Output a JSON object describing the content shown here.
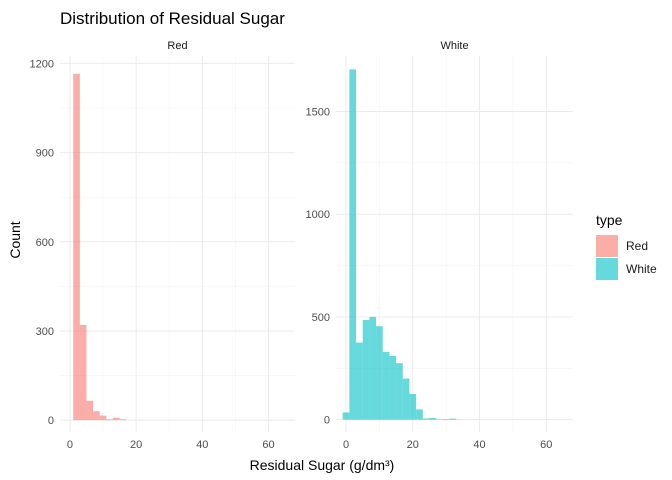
{
  "chart_data": {
    "type": "bar",
    "title": "Distribution of Residual Sugar",
    "xlabel": "Residual Sugar (g/dm³)",
    "ylabel": "Count",
    "legend": {
      "title": "type",
      "position": "right",
      "items": [
        {
          "label": "Red",
          "color": "#F8766D"
        },
        {
          "label": "White",
          "color": "#00BFC4"
        }
      ]
    },
    "bin_width": 2,
    "grid": true,
    "panels": [
      {
        "name": "Red",
        "color": "#F8766D",
        "xlim": [
          -3,
          68
        ],
        "ylim": [
          -40,
          1225
        ],
        "x_ticks": [
          0,
          20,
          40,
          60
        ],
        "y_ticks": [
          0,
          300,
          600,
          900,
          1200
        ],
        "bins": [
          {
            "x": 1,
            "count": 0
          },
          {
            "x": 2,
            "count": 1165
          },
          {
            "x": 4,
            "count": 320
          },
          {
            "x": 6,
            "count": 65
          },
          {
            "x": 8,
            "count": 30
          },
          {
            "x": 10,
            "count": 15
          },
          {
            "x": 12,
            "count": 3
          },
          {
            "x": 14,
            "count": 8
          },
          {
            "x": 16,
            "count": 3
          }
        ]
      },
      {
        "name": "White",
        "color": "#00BFC4",
        "xlim": [
          -3,
          68
        ],
        "ylim": [
          -60,
          1770
        ],
        "x_ticks": [
          0,
          20,
          40,
          60
        ],
        "y_ticks": [
          0,
          500,
          1000,
          1500
        ],
        "bins": [
          {
            "x": 0,
            "count": 35
          },
          {
            "x": 2,
            "count": 1705
          },
          {
            "x": 4,
            "count": 375
          },
          {
            "x": 6,
            "count": 485
          },
          {
            "x": 8,
            "count": 500
          },
          {
            "x": 10,
            "count": 455
          },
          {
            "x": 12,
            "count": 330
          },
          {
            "x": 14,
            "count": 310
          },
          {
            "x": 16,
            "count": 275
          },
          {
            "x": 18,
            "count": 200
          },
          {
            "x": 20,
            "count": 125
          },
          {
            "x": 22,
            "count": 50
          },
          {
            "x": 24,
            "count": 6
          },
          {
            "x": 26,
            "count": 8
          },
          {
            "x": 28,
            "count": 2
          },
          {
            "x": 30,
            "count": 3
          },
          {
            "x": 32,
            "count": 5
          },
          {
            "x": 34,
            "count": 1
          }
        ]
      }
    ]
  }
}
